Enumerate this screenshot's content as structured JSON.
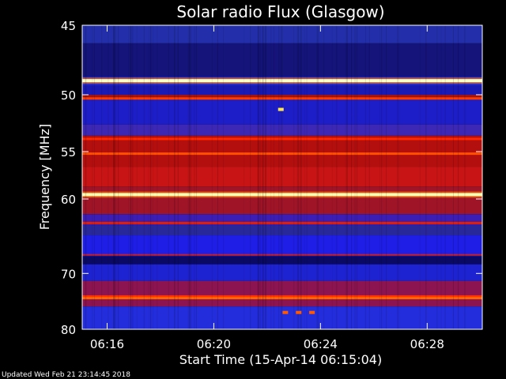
{
  "chart_data": {
    "type": "heatmap",
    "title": "Solar radio Flux (Glasgow)",
    "ylabel": "Frequency [MHz]",
    "xlabel": "Start Time (15-Apr-14 06:15:04)",
    "footer": "Updated Wed Feb 21 23:14:45 2018",
    "y_axis": {
      "scale": "reciprocal",
      "range": [
        45,
        80
      ],
      "ticks": [
        45,
        50,
        55,
        60,
        70,
        80
      ],
      "tick_labels": [
        "45",
        "50",
        "55",
        "60",
        "70",
        "80"
      ]
    },
    "x_axis": {
      "range": [
        "06:15:04",
        "06:30:04"
      ],
      "ticks": [
        "06:16",
        "06:20",
        "06:24",
        "06:28"
      ]
    },
    "colormap": {
      "low": "#000060",
      "mid_low": "#1e1ee6",
      "mid": "#c80000",
      "high": "#ff5a00",
      "max": "#ffffc8"
    },
    "background_bands": [
      {
        "from": 45,
        "to": 46.2,
        "color": "#232faa"
      },
      {
        "from": 46.2,
        "to": 48.6,
        "color": "#14147a"
      },
      {
        "from": 48.6,
        "to": 49.3,
        "color": "#1e28d2"
      },
      {
        "from": 49.3,
        "to": 50.0,
        "color": "#1a1ab4"
      },
      {
        "from": 50.0,
        "to": 50.4,
        "color": "#a01414"
      },
      {
        "from": 50.4,
        "to": 52.5,
        "color": "#1e1ec8"
      },
      {
        "from": 52.5,
        "to": 53.5,
        "color": "#3c28b4"
      },
      {
        "from": 53.5,
        "to": 56.5,
        "color": "#b40f0f"
      },
      {
        "from": 56.5,
        "to": 58.6,
        "color": "#c81414"
      },
      {
        "from": 58.6,
        "to": 61.8,
        "color": "#a01428"
      },
      {
        "from": 61.8,
        "to": 63.2,
        "color": "#3c1eb4"
      },
      {
        "from": 63.2,
        "to": 64.5,
        "color": "#28289b"
      },
      {
        "from": 64.5,
        "to": 67.4,
        "color": "#1e1ee6"
      },
      {
        "from": 67.4,
        "to": 68.6,
        "color": "#0a0a64"
      },
      {
        "from": 68.6,
        "to": 71.2,
        "color": "#1e23d2"
      },
      {
        "from": 71.2,
        "to": 75.6,
        "color": "#8c1450"
      },
      {
        "from": 75.6,
        "to": 80.0,
        "color": "#232ddc"
      }
    ],
    "bright_lines": [
      {
        "freq": 48.9,
        "color": "#ffffc8",
        "intensity": "max"
      },
      {
        "freq": 50.3,
        "color": "#ff3c00",
        "intensity": "high"
      },
      {
        "freq": 53.8,
        "color": "#ff2800",
        "intensity": "high"
      },
      {
        "freq": 55.2,
        "color": "#ff5000",
        "intensity": "high"
      },
      {
        "freq": 59.5,
        "color": "#ffffb4",
        "intensity": "max"
      },
      {
        "freq": 62.9,
        "color": "#e61e00",
        "intensity": "high"
      },
      {
        "freq": 67.2,
        "color": "#c81e1e",
        "intensity": "mid"
      },
      {
        "freq": 73.8,
        "color": "#ff3200",
        "intensity": "high"
      },
      {
        "freq": 74.1,
        "color": "#ff6400",
        "intensity": "high"
      }
    ],
    "bursts": [
      {
        "time": "06:22:30",
        "freq": 51.2,
        "color": "#ffe650"
      },
      {
        "time": "06:22:40",
        "freq": 76.7,
        "color": "#ff5a00"
      },
      {
        "time": "06:23:10",
        "freq": 76.7,
        "color": "#ff5a00"
      },
      {
        "time": "06:23:40",
        "freq": 76.7,
        "color": "#ff5a00"
      }
    ]
  }
}
